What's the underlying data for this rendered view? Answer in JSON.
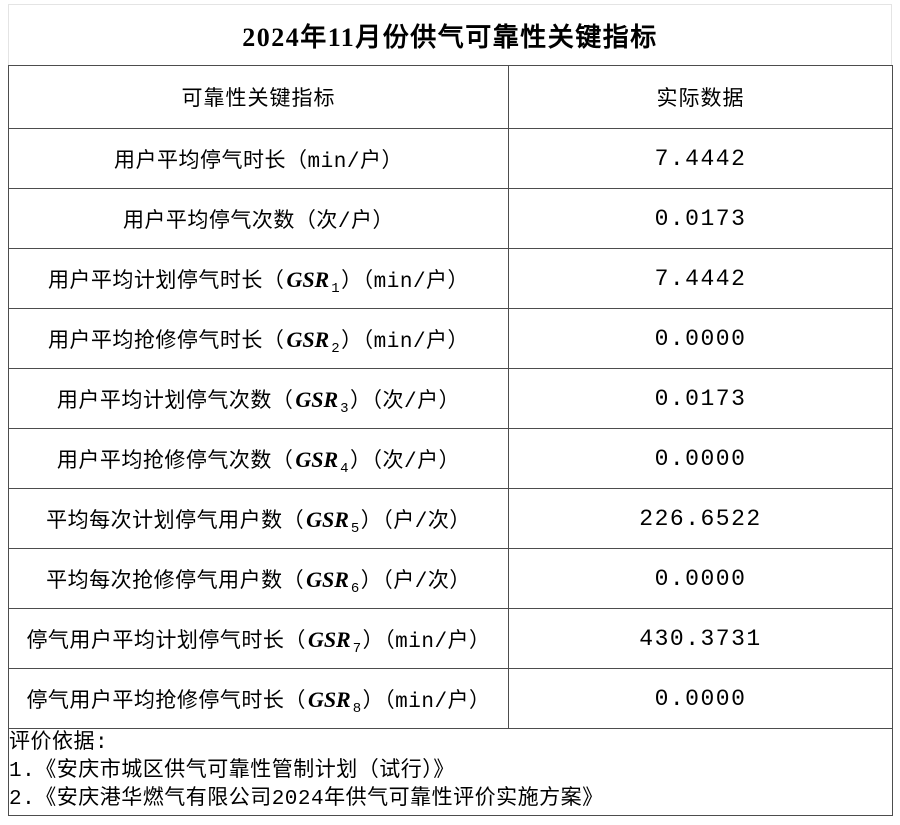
{
  "title": "2024年11月份供气可靠性关键指标",
  "table": {
    "columns": {
      "indicator": "可靠性关键指标",
      "value": "实际数据"
    },
    "rows": [
      {
        "label_prefix": "用户平均停气时长（min/户）",
        "gsr": "",
        "gsr_sub": "",
        "label_suffix": "",
        "value": "7.4442"
      },
      {
        "label_prefix": "用户平均停气次数（次/户）",
        "gsr": "",
        "gsr_sub": "",
        "label_suffix": "",
        "value": "0.0173"
      },
      {
        "label_prefix": "用户平均计划停气时长（",
        "gsr": "GSR",
        "gsr_sub": "1",
        "label_suffix": "）（min/户）",
        "value": "7.4442"
      },
      {
        "label_prefix": "用户平均抢修停气时长（",
        "gsr": "GSR",
        "gsr_sub": "2",
        "label_suffix": "）（min/户）",
        "value": "0.0000"
      },
      {
        "label_prefix": "用户平均计划停气次数（",
        "gsr": "GSR",
        "gsr_sub": "3",
        "label_suffix": "）（次/户）",
        "value": "0.0173"
      },
      {
        "label_prefix": "用户平均抢修停气次数（",
        "gsr": "GSR",
        "gsr_sub": "4",
        "label_suffix": "）（次/户）",
        "value": "0.0000"
      },
      {
        "label_prefix": "平均每次计划停气用户数（",
        "gsr": "GSR",
        "gsr_sub": "5",
        "label_suffix": "）（户/次）",
        "value": "226.6522"
      },
      {
        "label_prefix": "平均每次抢修停气用户数（",
        "gsr": "GSR",
        "gsr_sub": "6",
        "label_suffix": "）（户/次）",
        "value": "0.0000"
      },
      {
        "label_prefix": "停气用户平均计划停气时长（",
        "gsr": "GSR",
        "gsr_sub": "7",
        "label_suffix": "）（min/户）",
        "value": "430.3731"
      },
      {
        "label_prefix": "停气用户平均抢修停气时长（",
        "gsr": "GSR",
        "gsr_sub": "8",
        "label_suffix": "）（min/户）",
        "value": "0.0000"
      }
    ]
  },
  "footer": {
    "heading": "评价依据:",
    "notes": [
      "1.《安庆市城区供气可靠性管制计划（试行）》",
      "2.《安庆港华燃气有限公司2024年供气可靠性评价实施方案》"
    ]
  }
}
